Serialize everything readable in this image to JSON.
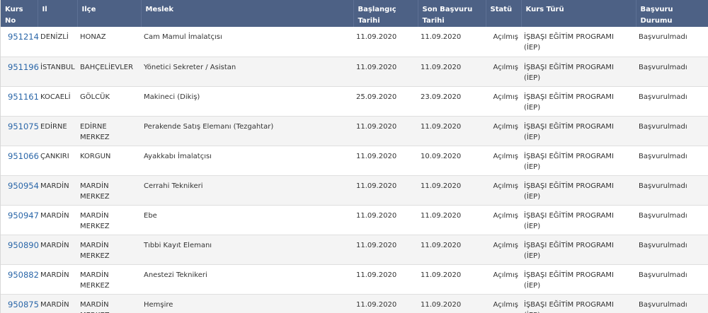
{
  "headers": {
    "kurs_no": "Kurs No",
    "il": "Il",
    "ilce": "Ilçe",
    "meslek": "Meslek",
    "baslangic_1": "Başlangıç",
    "baslangic_2": "Tarihi",
    "son_basvuru_1": "Son Başvuru",
    "son_basvuru_2": "Tarihi",
    "statu": "Statü",
    "kurs_turu": "Kurs Türü",
    "basvuru_durumu": "Başvuru Durumu"
  },
  "rows": [
    {
      "kurs_no": "951214",
      "il": "DENİZLİ",
      "ilce": "HONAZ",
      "meslek": "Cam Mamul İmalatçısı",
      "baslangic": "11.09.2020",
      "son_basvuru": "11.09.2020",
      "statu": "Açılmış",
      "kurs_turu_1": "İŞBAŞI EĞİTİM PROGRAMI",
      "kurs_turu_2": "(İEP)",
      "durum": "Başvurulmadı"
    },
    {
      "kurs_no": "951196",
      "il": "İSTANBUL",
      "ilce": "BAHÇELİEVLER",
      "meslek": "Yönetici Sekreter / Asistan",
      "baslangic": "11.09.2020",
      "son_basvuru": "11.09.2020",
      "statu": "Açılmış",
      "kurs_turu_1": "İŞBAŞI EĞİTİM PROGRAMI",
      "kurs_turu_2": "(İEP)",
      "durum": "Başvurulmadı"
    },
    {
      "kurs_no": "951161",
      "il": "KOCAELİ",
      "ilce": "GÖLCÜK",
      "meslek": "Makineci (Dikiş)",
      "baslangic": "25.09.2020",
      "son_basvuru": "23.09.2020",
      "statu": "Açılmış",
      "kurs_turu_1": "İŞBAŞI EĞİTİM PROGRAMI",
      "kurs_turu_2": "(İEP)",
      "durum": "Başvurulmadı"
    },
    {
      "kurs_no": "951075",
      "il": "EDİRNE",
      "ilce": "EDİRNE MERKEZ",
      "meslek": "Perakende Satış Elemanı (Tezgahtar)",
      "baslangic": "11.09.2020",
      "son_basvuru": "11.09.2020",
      "statu": "Açılmış",
      "kurs_turu_1": "İŞBAŞI EĞİTİM PROGRAMI",
      "kurs_turu_2": "(İEP)",
      "durum": "Başvurulmadı"
    },
    {
      "kurs_no": "951066",
      "il": "ÇANKIRI",
      "ilce": "KORGUN",
      "meslek": "Ayakkabı İmalatçısı",
      "baslangic": "11.09.2020",
      "son_basvuru": "10.09.2020",
      "statu": "Açılmış",
      "kurs_turu_1": "İŞBAŞI EĞİTİM PROGRAMI",
      "kurs_turu_2": "(İEP)",
      "durum": "Başvurulmadı"
    },
    {
      "kurs_no": "950954",
      "il": "MARDİN",
      "ilce": "MARDİN MERKEZ",
      "meslek": "Cerrahi Teknikeri",
      "baslangic": "11.09.2020",
      "son_basvuru": "11.09.2020",
      "statu": "Açılmış",
      "kurs_turu_1": "İŞBAŞI EĞİTİM PROGRAMI",
      "kurs_turu_2": "(İEP)",
      "durum": "Başvurulmadı"
    },
    {
      "kurs_no": "950947",
      "il": "MARDİN",
      "ilce": "MARDİN MERKEZ",
      "meslek": "Ebe",
      "baslangic": "11.09.2020",
      "son_basvuru": "11.09.2020",
      "statu": "Açılmış",
      "kurs_turu_1": "İŞBAŞI EĞİTİM PROGRAMI",
      "kurs_turu_2": "(İEP)",
      "durum": "Başvurulmadı"
    },
    {
      "kurs_no": "950890",
      "il": "MARDİN",
      "ilce": "MARDİN MERKEZ",
      "meslek": "Tıbbi Kayıt Elemanı",
      "baslangic": "11.09.2020",
      "son_basvuru": "11.09.2020",
      "statu": "Açılmış",
      "kurs_turu_1": "İŞBAŞI EĞİTİM PROGRAMI",
      "kurs_turu_2": "(İEP)",
      "durum": "Başvurulmadı"
    },
    {
      "kurs_no": "950882",
      "il": "MARDİN",
      "ilce": "MARDİN MERKEZ",
      "meslek": "Anestezi Teknikeri",
      "baslangic": "11.09.2020",
      "son_basvuru": "11.09.2020",
      "statu": "Açılmış",
      "kurs_turu_1": "İŞBAŞI EĞİTİM PROGRAMI",
      "kurs_turu_2": "(İEP)",
      "durum": "Başvurulmadı"
    },
    {
      "kurs_no": "950875",
      "il": "MARDİN",
      "ilce": "MARDİN MERKEZ",
      "meslek": "Hemşire",
      "baslangic": "11.09.2020",
      "son_basvuru": "11.09.2020",
      "statu": "Açılmış",
      "kurs_turu_1": "İŞBAŞI EĞİTİM PROGRAMI",
      "kurs_turu_2": "(İEP)",
      "durum": "Başvurulmadı"
    }
  ]
}
